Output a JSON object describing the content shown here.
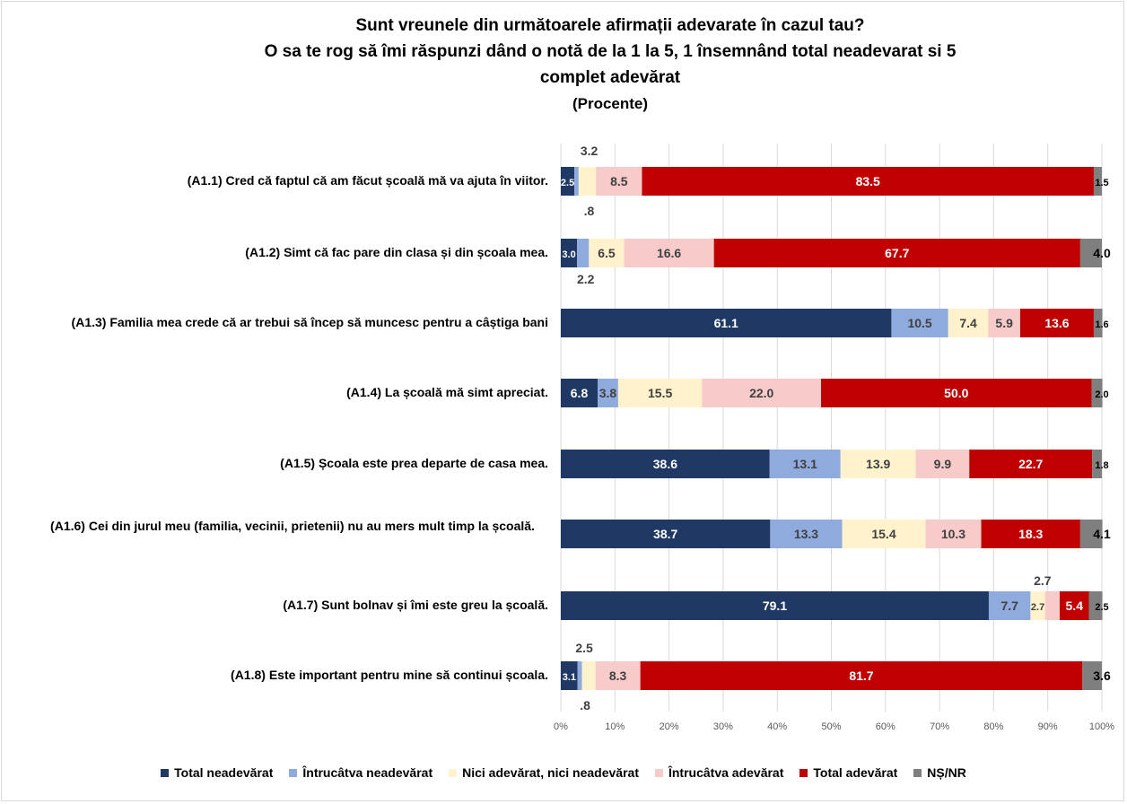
{
  "chart_data": {
    "type": "bar",
    "orientation": "horizontal",
    "stacked": "percent",
    "title": "Sunt vreunele din următoarele afirmații adevarate în cazul tau?",
    "subtitle_line2": "O sa te rog să îmi răspunzi dând o notă de la 1 la 5, 1 însemnând total neadevarat si 5",
    "subtitle_line3": "complet adevărat",
    "subtitle_line4": "(Procente)",
    "categories": [
      "(A1.1) Cred că faptul că am făcut școală mă va ajuta în viitor.",
      "(A1.2) Simt că fac pare din clasa și din școala mea.",
      "(A1.3) Familia mea crede că ar trebui să încep să muncesc pentru a câștiga bani",
      "(A1.4) La școală mă simt apreciat.",
      "(A1.5) Școala este prea departe de casa mea.",
      "(A1.6) Cei din jurul meu (familia, vecinii, prietenii) nu au mers mult timp la școală.",
      "(A1.7) Sunt bolnav și îmi este greu la școală.",
      "(A1.8) Este important pentru mine să continui școala."
    ],
    "series": [
      {
        "name": "Total neadevărat",
        "color": "#1f3864",
        "values": [
          2.5,
          3.0,
          61.1,
          6.8,
          38.6,
          38.7,
          79.1,
          3.1
        ]
      },
      {
        "name": "Întrucâtva neadevărat",
        "color": "#8faadc",
        "values": [
          0.8,
          2.2,
          10.5,
          3.8,
          13.1,
          13.3,
          7.7,
          0.8
        ]
      },
      {
        "name": "Nici adevărat, nici neadevărat",
        "color": "#fff2cc",
        "values": [
          3.2,
          6.5,
          7.4,
          15.5,
          13.9,
          15.4,
          2.7,
          2.5
        ]
      },
      {
        "name": "Întrucâtva adevărat",
        "color": "#f8cbcb",
        "values": [
          8.5,
          16.6,
          5.9,
          22.0,
          9.9,
          10.3,
          2.7,
          8.3
        ]
      },
      {
        "name": "Total adevărat",
        "color": "#c00000",
        "values": [
          83.5,
          67.7,
          13.6,
          50.0,
          22.7,
          18.3,
          5.4,
          81.7
        ]
      },
      {
        "name": "NȘ/NR",
        "color": "#7f7f7f",
        "values": [
          1.5,
          4.0,
          1.6,
          2.0,
          1.8,
          4.1,
          2.5,
          3.6
        ]
      }
    ],
    "value_labels": [
      [
        "2.5",
        ".8",
        "3.2",
        "8.5",
        "83.5",
        "1.5"
      ],
      [
        "3.0",
        "2.2",
        "6.5",
        "16.6",
        "67.7",
        "4.0"
      ],
      [
        "61.1",
        "10.5",
        "7.4",
        "5.9",
        "13.6",
        "1.6"
      ],
      [
        "6.8",
        "3.8",
        "15.5",
        "22.0",
        "50.0",
        "2.0"
      ],
      [
        "38.6",
        "13.1",
        "13.9",
        "9.9",
        "22.7",
        "1.8"
      ],
      [
        "38.7",
        "13.3",
        "15.4",
        "10.3",
        "18.3",
        "4.1"
      ],
      [
        "79.1",
        "7.7",
        "2.7",
        "2.7",
        "5.4",
        "2.5"
      ],
      [
        "3.1",
        ".8",
        "2.5",
        "8.3",
        "81.7",
        "3.6"
      ]
    ],
    "x_ticks": [
      "0%",
      "10%",
      "20%",
      "30%",
      "40%",
      "50%",
      "60%",
      "70%",
      "80%",
      "90%",
      "100%"
    ],
    "xlim": [
      0,
      100
    ],
    "grid": true,
    "legend_position": "bottom"
  }
}
